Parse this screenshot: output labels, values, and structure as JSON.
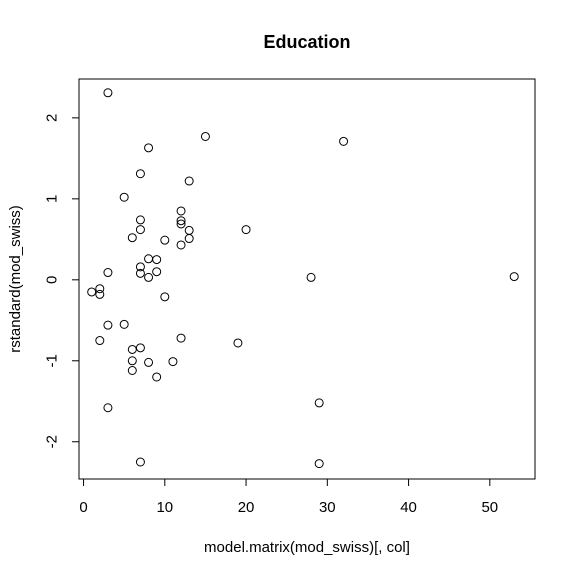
{
  "chart_data": {
    "type": "scatter",
    "title": "Education",
    "xlabel": "model.matrix(mod_swiss)[, col]",
    "ylabel": "rstandard(mod_swiss)",
    "xlim": [
      -0.56,
      55.56
    ],
    "ylim": [
      -2.46,
      2.48
    ],
    "xticks": [
      0,
      10,
      20,
      30,
      40,
      50
    ],
    "yticks": [
      -2,
      -1,
      0,
      1,
      2
    ],
    "grid": false,
    "legend": "none",
    "points": [
      {
        "x": 3,
        "y": 2.31
      },
      {
        "x": 8,
        "y": 1.63
      },
      {
        "x": 15,
        "y": 1.77
      },
      {
        "x": 32,
        "y": 1.71
      },
      {
        "x": 7,
        "y": 1.31
      },
      {
        "x": 13,
        "y": 1.22
      },
      {
        "x": 5,
        "y": 1.02
      },
      {
        "x": 12,
        "y": 0.85
      },
      {
        "x": 7,
        "y": 0.74
      },
      {
        "x": 12,
        "y": 0.73
      },
      {
        "x": 12,
        "y": 0.69
      },
      {
        "x": 7,
        "y": 0.62
      },
      {
        "x": 20,
        "y": 0.62
      },
      {
        "x": 13,
        "y": 0.61
      },
      {
        "x": 6,
        "y": 0.52
      },
      {
        "x": 13,
        "y": 0.51
      },
      {
        "x": 10,
        "y": 0.49
      },
      {
        "x": 12,
        "y": 0.43
      },
      {
        "x": 8,
        "y": 0.26
      },
      {
        "x": 9,
        "y": 0.25
      },
      {
        "x": 7,
        "y": 0.16
      },
      {
        "x": 9,
        "y": 0.1
      },
      {
        "x": 3,
        "y": 0.09
      },
      {
        "x": 7,
        "y": 0.08
      },
      {
        "x": 8,
        "y": 0.03
      },
      {
        "x": 28,
        "y": 0.03
      },
      {
        "x": 53,
        "y": 0.04
      },
      {
        "x": 2,
        "y": -0.11
      },
      {
        "x": 1,
        "y": -0.15
      },
      {
        "x": 2,
        "y": -0.18
      },
      {
        "x": 10,
        "y": -0.21
      },
      {
        "x": 5,
        "y": -0.55
      },
      {
        "x": 3,
        "y": -0.56
      },
      {
        "x": 12,
        "y": -0.72
      },
      {
        "x": 2,
        "y": -0.75
      },
      {
        "x": 19,
        "y": -0.78
      },
      {
        "x": 7,
        "y": -0.84
      },
      {
        "x": 6,
        "y": -0.86
      },
      {
        "x": 6,
        "y": -1.0
      },
      {
        "x": 11,
        "y": -1.01
      },
      {
        "x": 8,
        "y": -1.02
      },
      {
        "x": 6,
        "y": -1.12
      },
      {
        "x": 9,
        "y": -1.2
      },
      {
        "x": 29,
        "y": -1.52
      },
      {
        "x": 3,
        "y": -1.58
      },
      {
        "x": 7,
        "y": -2.25
      },
      {
        "x": 29,
        "y": -2.27
      }
    ]
  }
}
